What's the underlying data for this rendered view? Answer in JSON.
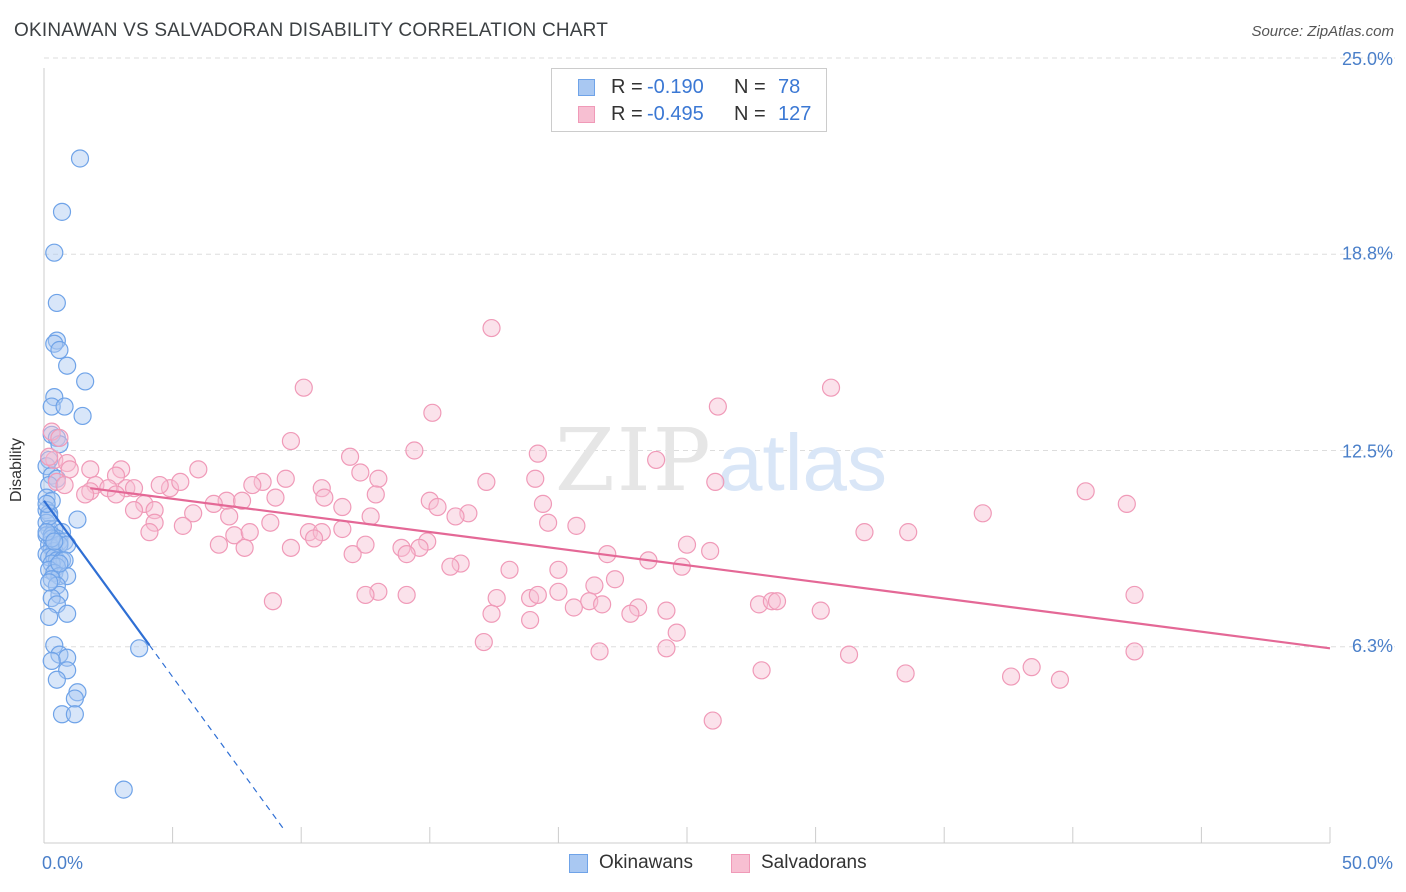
{
  "title": "OKINAWAN VS SALVADORAN DISABILITY CORRELATION CHART",
  "source": "Source: ZipAtlas.com",
  "watermark": {
    "zip": "ZIP",
    "atlas": "atlas"
  },
  "chart_data": {
    "type": "scatter",
    "ylabel": "Disability",
    "x_tick_labels": [
      "0.0%",
      "50.0%"
    ],
    "y_tick_labels": [
      "25.0%",
      "18.8%",
      "12.5%",
      "6.3%"
    ],
    "y_ticks": [
      25.0,
      18.8,
      12.5,
      6.3
    ],
    "xlim": [
      0,
      50
    ],
    "ylim": [
      0,
      25
    ],
    "grid": true,
    "legend_position": "top-center",
    "colors": {
      "okinawans": "#6fa3e8",
      "okinawans_fill": "#a9c8f2",
      "okinawans_line": "#2f6fd4",
      "salvadorans": "#f09ab8",
      "salvadorans_fill": "#f7bfd2",
      "salvadorans_line": "#e46896"
    },
    "series": [
      {
        "name": "Okinawans",
        "R": "-0.190",
        "N": "78",
        "trend": {
          "x1": 0,
          "y1": 10.9,
          "x2": 4.1,
          "y2": 6.3,
          "dash_to_x": 9.3
        },
        "points": [
          [
            1.4,
            21.8
          ],
          [
            0.7,
            20.1
          ],
          [
            0.4,
            18.8
          ],
          [
            0.5,
            17.2
          ],
          [
            0.5,
            16.0
          ],
          [
            0.4,
            15.9
          ],
          [
            0.6,
            15.7
          ],
          [
            0.9,
            15.2
          ],
          [
            1.6,
            14.7
          ],
          [
            0.4,
            14.2
          ],
          [
            0.3,
            13.9
          ],
          [
            0.8,
            13.9
          ],
          [
            1.5,
            13.6
          ],
          [
            0.3,
            13.0
          ],
          [
            0.5,
            12.9
          ],
          [
            0.6,
            12.7
          ],
          [
            0.2,
            12.2
          ],
          [
            0.1,
            12.0
          ],
          [
            0.3,
            11.7
          ],
          [
            0.5,
            11.6
          ],
          [
            0.2,
            11.4
          ],
          [
            0.1,
            11.0
          ],
          [
            0.3,
            10.9
          ],
          [
            0.1,
            10.6
          ],
          [
            0.2,
            10.5
          ],
          [
            0.1,
            10.2
          ],
          [
            1.3,
            10.3
          ],
          [
            0.2,
            10.0
          ],
          [
            0.4,
            10.0
          ],
          [
            0.7,
            9.9
          ],
          [
            0.1,
            9.8
          ],
          [
            0.3,
            9.8
          ],
          [
            0.5,
            9.7
          ],
          [
            0.6,
            9.6
          ],
          [
            0.8,
            9.6
          ],
          [
            0.2,
            9.5
          ],
          [
            0.3,
            9.4
          ],
          [
            0.4,
            9.3
          ],
          [
            0.6,
            9.5
          ],
          [
            0.9,
            9.5
          ],
          [
            0.1,
            9.2
          ],
          [
            0.2,
            9.1
          ],
          [
            0.4,
            9.1
          ],
          [
            0.5,
            9.0
          ],
          [
            0.7,
            9.0
          ],
          [
            0.8,
            9.0
          ],
          [
            0.3,
            8.9
          ],
          [
            0.5,
            8.8
          ],
          [
            0.2,
            8.7
          ],
          [
            0.4,
            8.6
          ],
          [
            0.6,
            8.5
          ],
          [
            0.9,
            8.5
          ],
          [
            0.3,
            8.4
          ],
          [
            0.5,
            8.2
          ],
          [
            0.6,
            7.9
          ],
          [
            0.3,
            7.8
          ],
          [
            0.5,
            7.6
          ],
          [
            0.9,
            7.3
          ],
          [
            0.2,
            7.2
          ],
          [
            0.4,
            6.3
          ],
          [
            0.6,
            6.0
          ],
          [
            3.7,
            6.2
          ],
          [
            0.9,
            5.9
          ],
          [
            0.3,
            5.8
          ],
          [
            0.9,
            5.5
          ],
          [
            0.5,
            5.2
          ],
          [
            1.3,
            4.8
          ],
          [
            1.2,
            4.6
          ],
          [
            0.7,
            4.1
          ],
          [
            1.2,
            4.1
          ],
          [
            3.1,
            1.7
          ],
          [
            0.2,
            10.4
          ],
          [
            0.3,
            9.7
          ],
          [
            0.1,
            9.9
          ],
          [
            0.4,
            9.6
          ],
          [
            0.2,
            8.3
          ],
          [
            0.6,
            8.9
          ],
          [
            0.1,
            10.8
          ]
        ]
      },
      {
        "name": "Salvadorans",
        "R": "-0.495",
        "N": "127",
        "trend": {
          "x1": 1.8,
          "y1": 11.3,
          "x2": 50,
          "y2": 6.2
        },
        "points": [
          [
            17.4,
            16.4
          ],
          [
            10.1,
            14.5
          ],
          [
            30.6,
            14.5
          ],
          [
            15.1,
            13.7
          ],
          [
            26.2,
            13.9
          ],
          [
            0.3,
            13.1
          ],
          [
            0.6,
            12.9
          ],
          [
            9.6,
            12.8
          ],
          [
            14.4,
            12.5
          ],
          [
            19.2,
            12.4
          ],
          [
            23.8,
            12.2
          ],
          [
            11.9,
            12.3
          ],
          [
            0.4,
            12.2
          ],
          [
            0.9,
            12.1
          ],
          [
            1.0,
            11.9
          ],
          [
            1.8,
            11.9
          ],
          [
            3.0,
            11.9
          ],
          [
            6.0,
            11.9
          ],
          [
            12.3,
            11.8
          ],
          [
            13.0,
            11.6
          ],
          [
            2.8,
            11.7
          ],
          [
            8.5,
            11.5
          ],
          [
            17.2,
            11.5
          ],
          [
            19.1,
            11.6
          ],
          [
            26.1,
            11.5
          ],
          [
            9.4,
            11.6
          ],
          [
            0.5,
            11.5
          ],
          [
            2.0,
            11.4
          ],
          [
            2.5,
            11.3
          ],
          [
            3.2,
            11.3
          ],
          [
            4.9,
            11.3
          ],
          [
            5.3,
            11.5
          ],
          [
            4.5,
            11.4
          ],
          [
            3.5,
            11.3
          ],
          [
            8.1,
            11.4
          ],
          [
            10.8,
            11.3
          ],
          [
            12.9,
            11.1
          ],
          [
            1.8,
            11.2
          ],
          [
            2.8,
            11.1
          ],
          [
            0.8,
            11.4
          ],
          [
            1.6,
            11.1
          ],
          [
            9.0,
            11.0
          ],
          [
            10.9,
            11.0
          ],
          [
            15.0,
            10.9
          ],
          [
            7.1,
            10.9
          ],
          [
            7.7,
            10.9
          ],
          [
            6.6,
            10.8
          ],
          [
            3.9,
            10.8
          ],
          [
            19.4,
            10.8
          ],
          [
            15.3,
            10.7
          ],
          [
            11.6,
            10.7
          ],
          [
            3.5,
            10.6
          ],
          [
            4.3,
            10.6
          ],
          [
            5.8,
            10.5
          ],
          [
            7.2,
            10.4
          ],
          [
            16.5,
            10.5
          ],
          [
            16.0,
            10.4
          ],
          [
            12.7,
            10.4
          ],
          [
            8.8,
            10.2
          ],
          [
            4.3,
            10.2
          ],
          [
            5.4,
            10.1
          ],
          [
            4.1,
            9.9
          ],
          [
            10.3,
            9.9
          ],
          [
            10.8,
            9.9
          ],
          [
            7.4,
            9.8
          ],
          [
            8.0,
            9.9
          ],
          [
            11.6,
            10.0
          ],
          [
            19.6,
            10.2
          ],
          [
            20.7,
            10.1
          ],
          [
            36.5,
            10.5
          ],
          [
            40.5,
            11.2
          ],
          [
            42.1,
            10.8
          ],
          [
            31.9,
            9.9
          ],
          [
            33.6,
            9.9
          ],
          [
            25.0,
            9.5
          ],
          [
            25.9,
            9.3
          ],
          [
            13.9,
            9.4
          ],
          [
            14.9,
            9.6
          ],
          [
            12.0,
            9.2
          ],
          [
            12.5,
            9.5
          ],
          [
            9.6,
            9.4
          ],
          [
            10.5,
            9.7
          ],
          [
            6.8,
            9.5
          ],
          [
            7.8,
            9.4
          ],
          [
            14.6,
            9.4
          ],
          [
            14.1,
            9.2
          ],
          [
            23.5,
            9.0
          ],
          [
            21.9,
            9.2
          ],
          [
            16.2,
            8.9
          ],
          [
            15.8,
            8.8
          ],
          [
            20.0,
            8.7
          ],
          [
            24.8,
            8.8
          ],
          [
            18.1,
            8.7
          ],
          [
            22.2,
            8.4
          ],
          [
            21.4,
            8.2
          ],
          [
            13.0,
            8.0
          ],
          [
            14.1,
            7.9
          ],
          [
            12.5,
            7.9
          ],
          [
            18.9,
            7.8
          ],
          [
            17.6,
            7.8
          ],
          [
            19.2,
            7.9
          ],
          [
            20.0,
            8.0
          ],
          [
            8.9,
            7.7
          ],
          [
            21.2,
            7.7
          ],
          [
            21.7,
            7.6
          ],
          [
            23.1,
            7.5
          ],
          [
            20.6,
            7.5
          ],
          [
            22.8,
            7.3
          ],
          [
            27.8,
            7.6
          ],
          [
            28.3,
            7.7
          ],
          [
            28.5,
            7.7
          ],
          [
            30.2,
            7.4
          ],
          [
            24.2,
            7.4
          ],
          [
            17.4,
            7.3
          ],
          [
            18.9,
            7.1
          ],
          [
            24.6,
            6.7
          ],
          [
            17.1,
            6.4
          ],
          [
            21.6,
            6.1
          ],
          [
            27.9,
            5.5
          ],
          [
            31.3,
            6.0
          ],
          [
            33.5,
            5.4
          ],
          [
            37.6,
            5.3
          ],
          [
            38.4,
            5.6
          ],
          [
            39.5,
            5.2
          ],
          [
            42.4,
            6.1
          ],
          [
            42.4,
            7.9
          ],
          [
            24.2,
            6.2
          ],
          [
            26.0,
            3.9
          ],
          [
            0.2,
            12.3
          ]
        ]
      }
    ]
  },
  "legend": {
    "r_label": "R =",
    "n_label": "N =",
    "rows": [
      {
        "r": "-0.190",
        "n": "78"
      },
      {
        "r": "-0.495",
        "n": "127"
      }
    ]
  },
  "bottom_legend": [
    "Okinawans",
    "Salvadorans"
  ]
}
